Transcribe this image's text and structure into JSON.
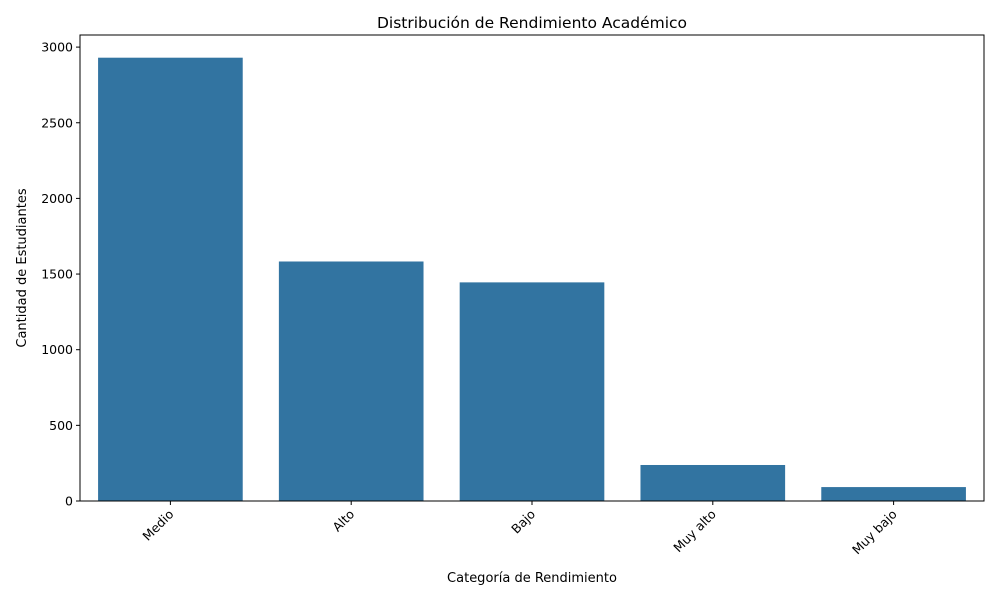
{
  "chart_data": {
    "type": "bar",
    "title": "Distribución de Rendimiento Académico",
    "xlabel": "Categoría de Rendimiento",
    "ylabel": "Cantidad de Estudiantes",
    "categories": [
      "Medio",
      "Alto",
      "Bajo",
      "Muy alto",
      "Muy bajo"
    ],
    "values": [
      2930,
      1583,
      1445,
      238,
      92
    ],
    "ylim": [
      0,
      3080
    ],
    "yticks": [
      0,
      500,
      1000,
      1500,
      2000,
      2500,
      3000
    ],
    "grid": false,
    "bar_color": "#3274a1",
    "x_tick_rotation": -45
  }
}
